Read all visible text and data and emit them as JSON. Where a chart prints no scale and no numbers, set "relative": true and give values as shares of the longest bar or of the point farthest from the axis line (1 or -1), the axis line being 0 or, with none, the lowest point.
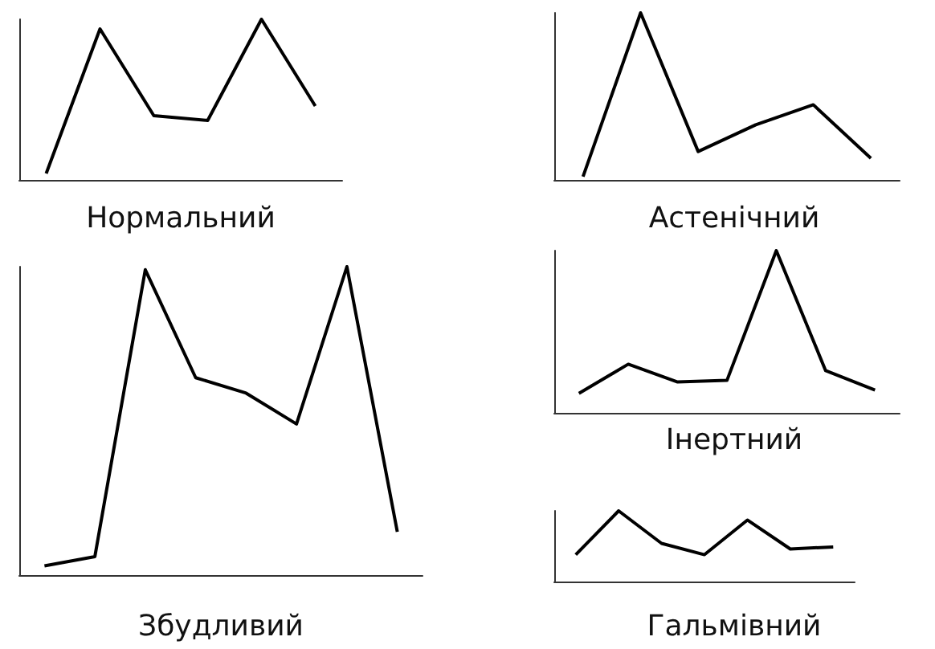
{
  "chart_data": [
    {
      "type": "line",
      "title": "Нормальний",
      "relative": true,
      "tick_labels": false,
      "color": "#000000",
      "categories": [
        null,
        null,
        null,
        null,
        null,
        null
      ],
      "values": [
        0.04,
        0.94,
        0.4,
        0.37,
        1,
        0.46
      ]
    },
    {
      "type": "line",
      "title": "Астенічний",
      "relative": true,
      "tick_labels": false,
      "color": "#000000",
      "categories": [
        null,
        null,
        null,
        null,
        null,
        null
      ],
      "values": [
        0.02,
        1,
        0.17,
        0.33,
        0.45,
        0.13
      ]
    },
    {
      "type": "line",
      "title": "Збудливий",
      "relative": true,
      "tick_labels": false,
      "color": "#000000",
      "categories": [
        null,
        null,
        null,
        null,
        null,
        null,
        null,
        null
      ],
      "values": [
        0.03,
        0.06,
        0.99,
        0.64,
        0.59,
        0.49,
        1,
        0.14
      ]
    },
    {
      "type": "line",
      "title": "Інертний",
      "relative": true,
      "tick_labels": false,
      "color": "#000000",
      "categories": [
        null,
        null,
        null,
        null,
        null,
        null,
        null
      ],
      "values": [
        0.12,
        0.3,
        0.19,
        0.2,
        1,
        0.26,
        0.14
      ]
    },
    {
      "type": "line",
      "title": "Гальмівний",
      "relative": true,
      "tick_labels": false,
      "color": "#000000",
      "categories": [
        null,
        null,
        null,
        null,
        null,
        null,
        null
      ],
      "values": [
        0.38,
        1,
        0.54,
        0.38,
        0.87,
        0.46,
        0.49
      ]
    }
  ]
}
